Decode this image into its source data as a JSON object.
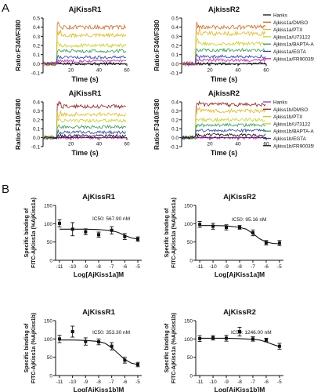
{
  "figure": {
    "panel_a": "A",
    "panel_b": "B"
  },
  "legend_a_top": {
    "entries": [
      {
        "label": "Hanks",
        "color": "#111111"
      },
      {
        "label": "Ajkiss1a/DMSO",
        "color": "#e0641a"
      },
      {
        "label": "Ajkiss1a/PTX",
        "color": "#e8b81a"
      },
      {
        "label": "Ajkiss1a/U73122",
        "color": "#c7d41a"
      },
      {
        "label": "Ajkiss1a/BAPTA-AM",
        "color": "#2fa34a"
      },
      {
        "label": "Ajkiss1a/EGTA",
        "color": "#2740c2"
      },
      {
        "label": "Ajkiss1a/FR900359",
        "color": "#c71ec7"
      }
    ]
  },
  "legend_a_bottom": {
    "entries": [
      {
        "label": "Hanks",
        "color": "#c71ec7"
      },
      {
        "label": "Ajkiss1b/DMSO",
        "color": "#a01818"
      },
      {
        "label": "Ajkiss1b/PTX",
        "color": "#e8b81a"
      },
      {
        "label": "Ajkiss1b/U73122",
        "color": "#c7d41a"
      },
      {
        "label": "Ajkiss1b/BAPTA-AM",
        "color": "#2fa34a"
      },
      {
        "label": "Ajkiss1b/EGTA",
        "color": "#2740c2"
      },
      {
        "label": "Ajkiss1b/FR900359",
        "color": "#111111"
      }
    ]
  },
  "chart_data": [
    {
      "type": "line",
      "title": "AjKissR1",
      "xlabel": "Time (s)",
      "ylabel": "Ratio:F340/F380",
      "xlim": [
        0,
        60
      ],
      "ylim": [
        -0.1,
        0.5
      ],
      "xticks": [
        20,
        40,
        60
      ],
      "yticks": [
        -0.1,
        0.0,
        0.1,
        0.2,
        0.3,
        0.4,
        0.5
      ],
      "ytick_labels": [
        "-0.1",
        "0.0",
        "0.1",
        "0.2",
        "0.3",
        "0.4",
        "0.5"
      ],
      "series": [
        {
          "name": "Hanks",
          "color": "#111111",
          "baseline": 0.0,
          "plateau": 0.0
        },
        {
          "name": "Ajkiss1a/DMSO",
          "color": "#e0641a",
          "baseline": 0.0,
          "plateau": 0.4
        },
        {
          "name": "Ajkiss1a/PTX",
          "color": "#e8b81a",
          "baseline": 0.0,
          "plateau": 0.31
        },
        {
          "name": "Ajkiss1a/U73122",
          "color": "#c7d41a",
          "baseline": 0.0,
          "plateau": 0.2
        },
        {
          "name": "Ajkiss1a/BAPTA-AM",
          "color": "#2fa34a",
          "baseline": 0.0,
          "plateau": 0.14
        },
        {
          "name": "Ajkiss1a/EGTA",
          "color": "#2740c2",
          "baseline": 0.0,
          "plateau": 0.07
        },
        {
          "name": "Ajkiss1a/FR900359",
          "color": "#c71ec7",
          "baseline": 0.0,
          "plateau": 0.03
        }
      ]
    },
    {
      "type": "line",
      "title": "AjkissR2",
      "xlabel": "Time (s)",
      "ylabel": "Ratio:F340/F380",
      "xlim": [
        0,
        60
      ],
      "ylim": [
        -0.1,
        0.5
      ],
      "xticks": [
        20,
        40,
        60
      ],
      "yticks": [
        -0.1,
        0.0,
        0.1,
        0.2,
        0.3,
        0.4,
        0.5
      ],
      "ytick_labels": [
        "-0.1",
        "0.0",
        "0.1",
        "0.2",
        "0.3",
        "0.4",
        "0.5"
      ],
      "series": [
        {
          "name": "Hanks",
          "color": "#111111",
          "baseline": 0.0,
          "plateau": 0.0
        },
        {
          "name": "Ajkiss1a/DMSO",
          "color": "#e0641a",
          "baseline": 0.0,
          "plateau": 0.4
        },
        {
          "name": "Ajkiss1a/PTX",
          "color": "#e8b81a",
          "baseline": 0.0,
          "plateau": 0.33
        },
        {
          "name": "Ajkiss1a/U73122",
          "color": "#c7d41a",
          "baseline": 0.0,
          "plateau": 0.22
        },
        {
          "name": "Ajkiss1a/BAPTA-AM",
          "color": "#2fa34a",
          "baseline": 0.0,
          "plateau": 0.15
        },
        {
          "name": "Ajkiss1a/EGTA",
          "color": "#2740c2",
          "baseline": 0.0,
          "plateau": 0.08
        },
        {
          "name": "Ajkiss1a/FR900359",
          "color": "#c71ec7",
          "baseline": 0.0,
          "plateau": 0.04
        }
      ]
    },
    {
      "type": "line",
      "title": "AjKissR1",
      "xlabel": "Time (s)",
      "ylabel": "Ratio:F340/F380",
      "xlim": [
        0,
        60
      ],
      "ylim": [
        -0.1,
        0.4
      ],
      "xticks": [
        20,
        40,
        60
      ],
      "yticks": [
        -0.1,
        0.0,
        0.1,
        0.2,
        0.3,
        0.4
      ],
      "ytick_labels": [
        "-0.1",
        "0.0",
        "0.1",
        "0.2",
        "0.3",
        "0.4"
      ],
      "series": [
        {
          "name": "Hanks",
          "color": "#c71ec7",
          "baseline": 0.0,
          "plateau": 0.0
        },
        {
          "name": "Ajkiss1b/DMSO",
          "color": "#a01818",
          "baseline": 0.0,
          "plateau": 0.35
        },
        {
          "name": "Ajkiss1b/PTX",
          "color": "#e8b81a",
          "baseline": 0.0,
          "plateau": 0.26
        },
        {
          "name": "Ajkiss1b/U73122",
          "color": "#c7d41a",
          "baseline": 0.0,
          "plateau": 0.19
        },
        {
          "name": "Ajkiss1b/BAPTA-AM",
          "color": "#2fa34a",
          "baseline": 0.0,
          "plateau": 0.12
        },
        {
          "name": "Ajkiss1b/EGTA",
          "color": "#2740c2",
          "baseline": 0.0,
          "plateau": 0.06
        },
        {
          "name": "Ajkiss1b/FR900359",
          "color": "#111111",
          "baseline": 0.0,
          "plateau": 0.02
        }
      ]
    },
    {
      "type": "line",
      "title": "AjkissR2",
      "xlabel": "Time (s)",
      "ylabel": "Ratio:F340/F380",
      "xlim": [
        0,
        60
      ],
      "ylim": [
        -0.1,
        0.4
      ],
      "xticks": [
        20,
        40,
        60
      ],
      "yticks": [
        -0.1,
        0.0,
        0.1,
        0.2,
        0.3,
        0.4
      ],
      "ytick_labels": [
        "-0.1",
        "0.0",
        "0.1",
        "0.2",
        "0.3",
        "0.4"
      ],
      "series": [
        {
          "name": "Hanks",
          "color": "#c71ec7",
          "baseline": 0.0,
          "plateau": 0.0
        },
        {
          "name": "Ajkiss1b/DMSO",
          "color": "#a01818",
          "baseline": 0.0,
          "plateau": 0.37
        },
        {
          "name": "Ajkiss1b/PTX",
          "color": "#e8b81a",
          "baseline": 0.0,
          "plateau": 0.3
        },
        {
          "name": "Ajkiss1b/U73122",
          "color": "#c7d41a",
          "baseline": 0.0,
          "plateau": 0.2
        },
        {
          "name": "Ajkiss1b/BAPTA-AM",
          "color": "#2fa34a",
          "baseline": 0.0,
          "plateau": 0.14
        },
        {
          "name": "Ajkiss1b/EGTA",
          "color": "#2740c2",
          "baseline": 0.0,
          "plateau": 0.08
        },
        {
          "name": "Ajkiss1b/FR900359",
          "color": "#111111",
          "baseline": 0.0,
          "plateau": 0.03
        }
      ]
    },
    {
      "type": "scatter",
      "title": "AjKissR1",
      "annotation": "IC50: 567.90 nM",
      "xlabel": "Log[AjKiss1a]M",
      "ylabel": [
        "Specific binding of",
        "FITC-AjKiss1a (%AjKiss1a)"
      ],
      "xlim": [
        -11.3,
        -4.7
      ],
      "ylim": [
        0,
        150
      ],
      "xticks": [
        -11,
        -10,
        -9,
        -8,
        -7,
        -6,
        -5
      ],
      "yticks": [
        0,
        50,
        100,
        150
      ],
      "x": [
        -11,
        -10,
        -9,
        -8,
        -7,
        -6,
        -5
      ],
      "y": [
        101,
        85,
        78,
        70,
        82,
        65,
        58
      ],
      "err": [
        10,
        18,
        8,
        7,
        10,
        8,
        6
      ],
      "fit_x": [
        -11,
        -10,
        -9,
        -8,
        -7,
        -6.5,
        -6,
        -5.5,
        -5
      ],
      "fit_y": [
        85,
        85,
        85,
        84,
        81,
        76,
        68,
        61,
        58
      ]
    },
    {
      "type": "scatter",
      "title": "AjKissR2",
      "annotation": "IC50: 95.16 nM",
      "xlabel": "Log[AjKiss1a]M",
      "ylabel": [
        "Specific binding of",
        "FITC-AjKiss1a (%AjKiss1a)"
      ],
      "xlim": [
        -11.3,
        -4.7
      ],
      "ylim": [
        0,
        150
      ],
      "xticks": [
        -11,
        -10,
        -9,
        -8,
        -7,
        -6,
        -5
      ],
      "yticks": [
        0,
        50,
        100,
        150
      ],
      "x": [
        -11,
        -10,
        -9,
        -8,
        -7,
        -6,
        -5
      ],
      "y": [
        98,
        93,
        90,
        90,
        75,
        48,
        47
      ],
      "err": [
        8,
        8,
        7,
        5,
        8,
        6,
        7
      ],
      "fit_x": [
        -11,
        -10,
        -9,
        -8,
        -7.5,
        -7,
        -6.5,
        -6,
        -5.5,
        -5
      ],
      "fit_y": [
        95,
        95,
        94,
        90,
        85,
        73,
        59,
        50,
        46,
        45
      ]
    },
    {
      "type": "scatter",
      "title": "AjKissR1",
      "annotation": "IC50: 353.30 nM",
      "xlabel": "Log[AjKiss1b]M",
      "ylabel": [
        "Specific binding of",
        "FITC-AjKiss1a (%AjKiss1b)"
      ],
      "xlim": [
        -11.3,
        -4.7
      ],
      "ylim": [
        0,
        150
      ],
      "xticks": [
        -11,
        -10,
        -9,
        -8,
        -7,
        -6,
        -5
      ],
      "yticks": [
        0,
        50,
        100,
        150
      ],
      "x": [
        -11,
        -10,
        -9,
        -8,
        -7,
        -6,
        -5
      ],
      "y": [
        100,
        120,
        93,
        92,
        80,
        42,
        30
      ],
      "err": [
        10,
        15,
        10,
        8,
        10,
        8,
        6
      ],
      "fit_x": [
        -11,
        -10,
        -9,
        -8,
        -7.5,
        -7,
        -6.5,
        -6,
        -5.5,
        -5
      ],
      "fit_y": [
        97,
        97,
        96,
        93,
        88,
        76,
        60,
        44,
        34,
        30
      ]
    },
    {
      "type": "scatter",
      "title": "AjKissR2",
      "annotation": "IC50: 1246.00 nM",
      "xlabel": "Log[AjKiss1b]M",
      "ylabel": [
        "Specific binding of",
        "FITC-AjKiss1a (%AjKiss1b)"
      ],
      "xlim": [
        -11.3,
        -4.7
      ],
      "ylim": [
        0,
        150
      ],
      "xticks": [
        -11,
        -10,
        -9,
        -8,
        -7,
        -6,
        -5
      ],
      "yticks": [
        0,
        50,
        100,
        150
      ],
      "x": [
        -11,
        -10,
        -9,
        -8,
        -7,
        -6,
        -5
      ],
      "y": [
        101,
        103,
        102,
        120,
        100,
        97,
        80
      ],
      "err": [
        8,
        6,
        8,
        12,
        6,
        5,
        8
      ],
      "fit_x": [
        -11,
        -10,
        -9,
        -8,
        -7,
        -6.5,
        -6,
        -5.5,
        -5
      ],
      "fit_y": [
        102,
        102,
        102,
        101,
        99,
        97,
        92,
        85,
        79
      ]
    }
  ]
}
